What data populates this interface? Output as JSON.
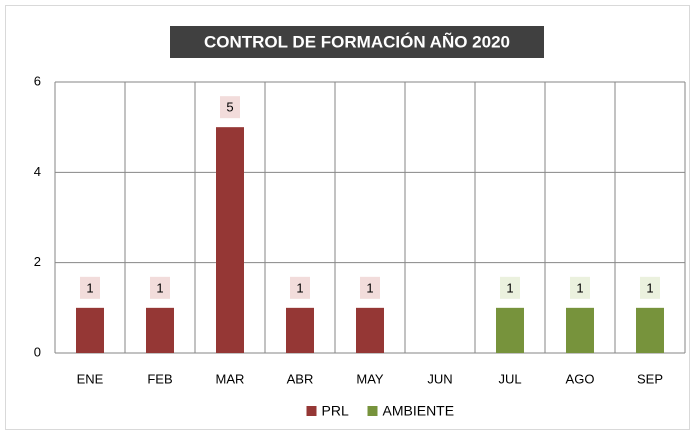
{
  "chart_data": {
    "type": "bar",
    "stacked": true,
    "title": "CONTROL DE FORMACIÓN AÑO 2020",
    "categories": [
      "ENE",
      "FEB",
      "MAR",
      "ABR",
      "MAY",
      "JUN",
      "JUL",
      "AGO",
      "SEP"
    ],
    "series": [
      {
        "name": "PRL",
        "color": "#953735",
        "label_color": "#f2dcdb",
        "values": [
          1,
          1,
          5,
          1,
          1,
          null,
          null,
          null,
          null
        ]
      },
      {
        "name": "AMBIENTE",
        "color": "#77933c",
        "label_color": "#ebf1de",
        "values": [
          null,
          null,
          null,
          null,
          null,
          null,
          1,
          1,
          1
        ]
      }
    ],
    "ylim": [
      0,
      6
    ],
    "yticks": [
      0,
      2,
      4,
      6
    ],
    "grid": true,
    "legend": "bottom"
  }
}
